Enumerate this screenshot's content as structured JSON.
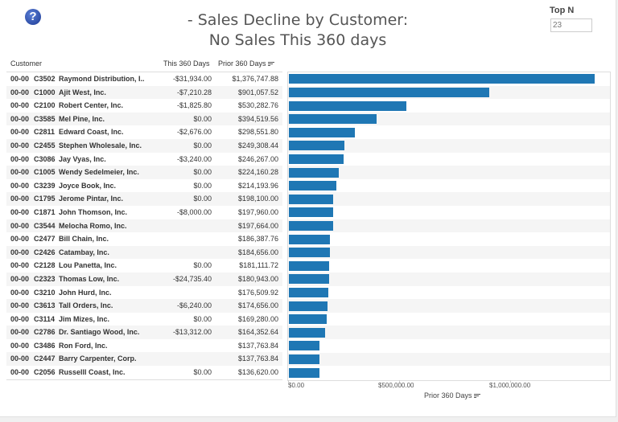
{
  "header": {
    "help_icon": "question-circle-icon",
    "title_line1": "- Sales Decline by Customer:",
    "title_line2": "No Sales This 360 days",
    "topn_label": "Top N",
    "topn_value": "23"
  },
  "table": {
    "columns": [
      "Customer",
      "This 360 Days",
      "Prior 360 Days"
    ],
    "rows": [
      [
        "00-00",
        "C3502",
        "Raymond Distribution, I..",
        "-$31,934.00",
        "$1,376,747.88"
      ],
      [
        "00-00",
        "C1000",
        "Ajit West, Inc.",
        "-$7,210.28",
        "$901,057.52"
      ],
      [
        "00-00",
        "C2100",
        "Robert Center, Inc.",
        "-$1,825.80",
        "$530,282.76"
      ],
      [
        "00-00",
        "C3585",
        "Mel Pine, Inc.",
        "$0.00",
        "$394,519.56"
      ],
      [
        "00-00",
        "C2811",
        "Edward Coast, Inc.",
        "-$2,676.00",
        "$298,551.80"
      ],
      [
        "00-00",
        "C2455",
        "Stephen Wholesale, Inc.",
        "$0.00",
        "$249,308.44"
      ],
      [
        "00-00",
        "C3086",
        "Jay Vyas, Inc.",
        "-$3,240.00",
        "$246,267.00"
      ],
      [
        "00-00",
        "C1005",
        "Wendy Sedelmeier, Inc.",
        "$0.00",
        "$224,160.28"
      ],
      [
        "00-00",
        "C3239",
        "Joyce Book, Inc.",
        "$0.00",
        "$214,193.96"
      ],
      [
        "00-00",
        "C1795",
        "Jerome Pintar, Inc.",
        "$0.00",
        "$198,100.00"
      ],
      [
        "00-00",
        "C1871",
        "John Thomson, Inc.",
        "-$8,000.00",
        "$197,960.00"
      ],
      [
        "00-00",
        "C3544",
        "Melocha Romo, Inc.",
        "",
        "$197,664.00"
      ],
      [
        "00-00",
        "C2477",
        "Bill Chain, Inc.",
        "",
        "$186,387.76"
      ],
      [
        "00-00",
        "C2426",
        "Catambay, Inc.",
        "",
        "$184,656.00"
      ],
      [
        "00-00",
        "C2128",
        "Lou Panetta, Inc.",
        "$0.00",
        "$181,111.72"
      ],
      [
        "00-00",
        "C2323",
        "Thomas Low, Inc.",
        "-$24,735.40",
        "$180,943.00"
      ],
      [
        "00-00",
        "C3210",
        "John Hurd, Inc.",
        "",
        "$176,509.92"
      ],
      [
        "00-00",
        "C3613",
        "Tall Orders, Inc.",
        "-$6,240.00",
        "$174,656.00"
      ],
      [
        "00-00",
        "C3114",
        "Jim Mizes, Inc.",
        "$0.00",
        "$169,280.00"
      ],
      [
        "00-00",
        "C2786",
        "Dr. Santiago Wood, Inc.",
        "-$13,312.00",
        "$164,352.64"
      ],
      [
        "00-00",
        "C3486",
        "Ron Ford, Inc.",
        "",
        "$137,763.84"
      ],
      [
        "00-00",
        "C2447",
        "Barry Carpenter, Corp.",
        "",
        "$137,763.84"
      ],
      [
        "00-00",
        "C2056",
        "Russelll Coast, Inc.",
        "$0.00",
        "$136,620.00"
      ]
    ]
  },
  "chart_data": {
    "type": "bar",
    "orientation": "horizontal",
    "values": [
      1376747.88,
      901057.52,
      530282.76,
      394519.56,
      298551.8,
      249308.44,
      246267.0,
      224160.28,
      214193.96,
      198100.0,
      197960.0,
      197664.0,
      186387.76,
      184656.0,
      181111.72,
      180943.0,
      176509.92,
      174656.0,
      169280.0,
      164352.64,
      137763.84,
      137763.84,
      136620.0
    ],
    "xlabel": "Prior 360 Days",
    "xlim": [
      0,
      1450000
    ],
    "xticks": [
      0,
      500000,
      1000000
    ],
    "xtick_labels": [
      "$0.00",
      "$500,000.00",
      "$1,000,000.00"
    ],
    "bar_color": "#1f77b4",
    "grid": false
  }
}
